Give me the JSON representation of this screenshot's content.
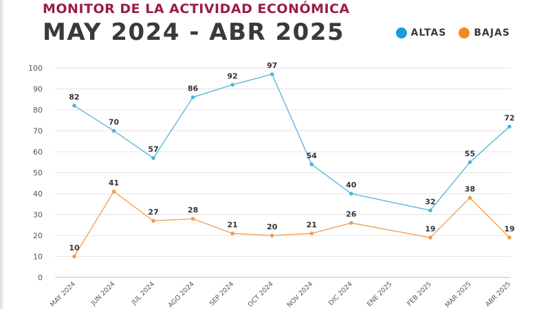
{
  "header": {
    "subtitle": "MONITOR DE LA ACTIVIDAD ECONÓMICA",
    "title": "MAY 2024 - ABR 2025"
  },
  "legend": [
    {
      "label": "ALTAS",
      "color": "#1b9bd7"
    },
    {
      "label": "BAJAS",
      "color": "#f28a1e"
    }
  ],
  "chart_data": {
    "type": "line",
    "title": "MAY 2024 - ABR 2025",
    "categories": [
      "MAY 2024",
      "JUN 2024",
      "JUL 2024",
      "AGO 2024",
      "SEP 2024",
      "OCT 2024",
      "NOV 2024",
      "DIC 2024",
      "ENE 2025",
      "FEB 2025",
      "MAR 2025",
      "ABR 2025"
    ],
    "series": [
      {
        "name": "ALTAS",
        "color": "#4fb3d9",
        "values": [
          82,
          70,
          57,
          86,
          92,
          97,
          54,
          40,
          null,
          32,
          55,
          72
        ]
      },
      {
        "name": "BAJAS",
        "color": "#f29b4a",
        "values": [
          10,
          41,
          27,
          28,
          21,
          20,
          21,
          26,
          null,
          19,
          38,
          19
        ]
      }
    ],
    "ylim": [
      0,
      100
    ],
    "yticks": [
      0,
      10,
      20,
      30,
      40,
      50,
      60,
      70,
      80,
      90,
      100
    ],
    "grid": true,
    "legend_position": "top-right"
  }
}
